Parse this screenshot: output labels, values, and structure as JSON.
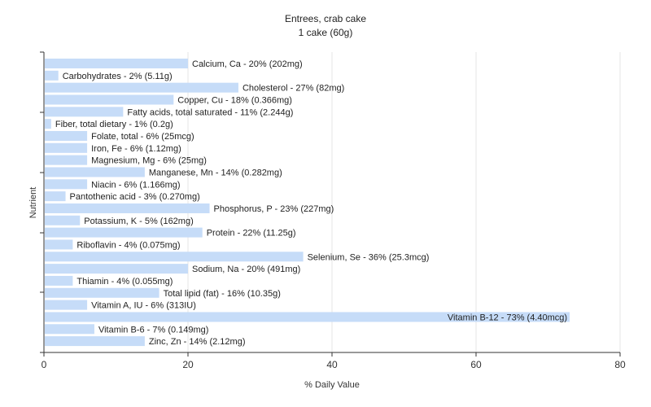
{
  "chart_data": {
    "type": "bar",
    "orientation": "horizontal",
    "title": "Entrees, crab cake",
    "subtitle": "1 cake (60g)",
    "xlabel": "% Daily Value",
    "ylabel": "Nutrient",
    "xlim": [
      0,
      80
    ],
    "xticks": [
      0,
      20,
      40,
      60,
      80
    ],
    "grid": true,
    "bar_color": "#c6dcf8",
    "categories": [
      "Calcium, Ca",
      "Carbohydrates",
      "Cholesterol",
      "Copper, Cu",
      "Fatty acids, total saturated",
      "Fiber, total dietary",
      "Folate, total",
      "Iron, Fe",
      "Magnesium, Mg",
      "Manganese, Mn",
      "Niacin",
      "Pantothenic acid",
      "Phosphorus, P",
      "Potassium, K",
      "Protein",
      "Riboflavin",
      "Selenium, Se",
      "Sodium, Na",
      "Thiamin",
      "Total lipid (fat)",
      "Vitamin A, IU",
      "Vitamin B-12",
      "Vitamin B-6",
      "Zinc, Zn"
    ],
    "values": [
      20,
      2,
      27,
      18,
      11,
      1,
      6,
      6,
      6,
      14,
      6,
      3,
      23,
      5,
      22,
      4,
      36,
      20,
      4,
      16,
      6,
      73,
      7,
      14
    ],
    "labels": [
      "Calcium, Ca - 20% (202mg)",
      "Carbohydrates - 2% (5.11g)",
      "Cholesterol - 27% (82mg)",
      "Copper, Cu - 18% (0.366mg)",
      "Fatty acids, total saturated - 11% (2.244g)",
      "Fiber, total dietary - 1% (0.2g)",
      "Folate, total - 6% (25mcg)",
      "Iron, Fe - 6% (1.12mg)",
      "Magnesium, Mg - 6% (25mg)",
      "Manganese, Mn - 14% (0.282mg)",
      "Niacin - 6% (1.166mg)",
      "Pantothenic acid - 3% (0.270mg)",
      "Phosphorus, P - 23% (227mg)",
      "Potassium, K - 5% (162mg)",
      "Protein - 22% (11.25g)",
      "Riboflavin - 4% (0.075mg)",
      "Selenium, Se - 36% (25.3mcg)",
      "Sodium, Na - 20% (491mg)",
      "Thiamin - 4% (0.055mg)",
      "Total lipid (fat) - 16% (10.35g)",
      "Vitamin A, IU - 6% (313IU)",
      "Vitamin B-12 - 73% (4.40mcg)",
      "Vitamin B-6 - 7% (0.149mg)",
      "Zinc, Zn - 14% (2.12mg)"
    ]
  }
}
